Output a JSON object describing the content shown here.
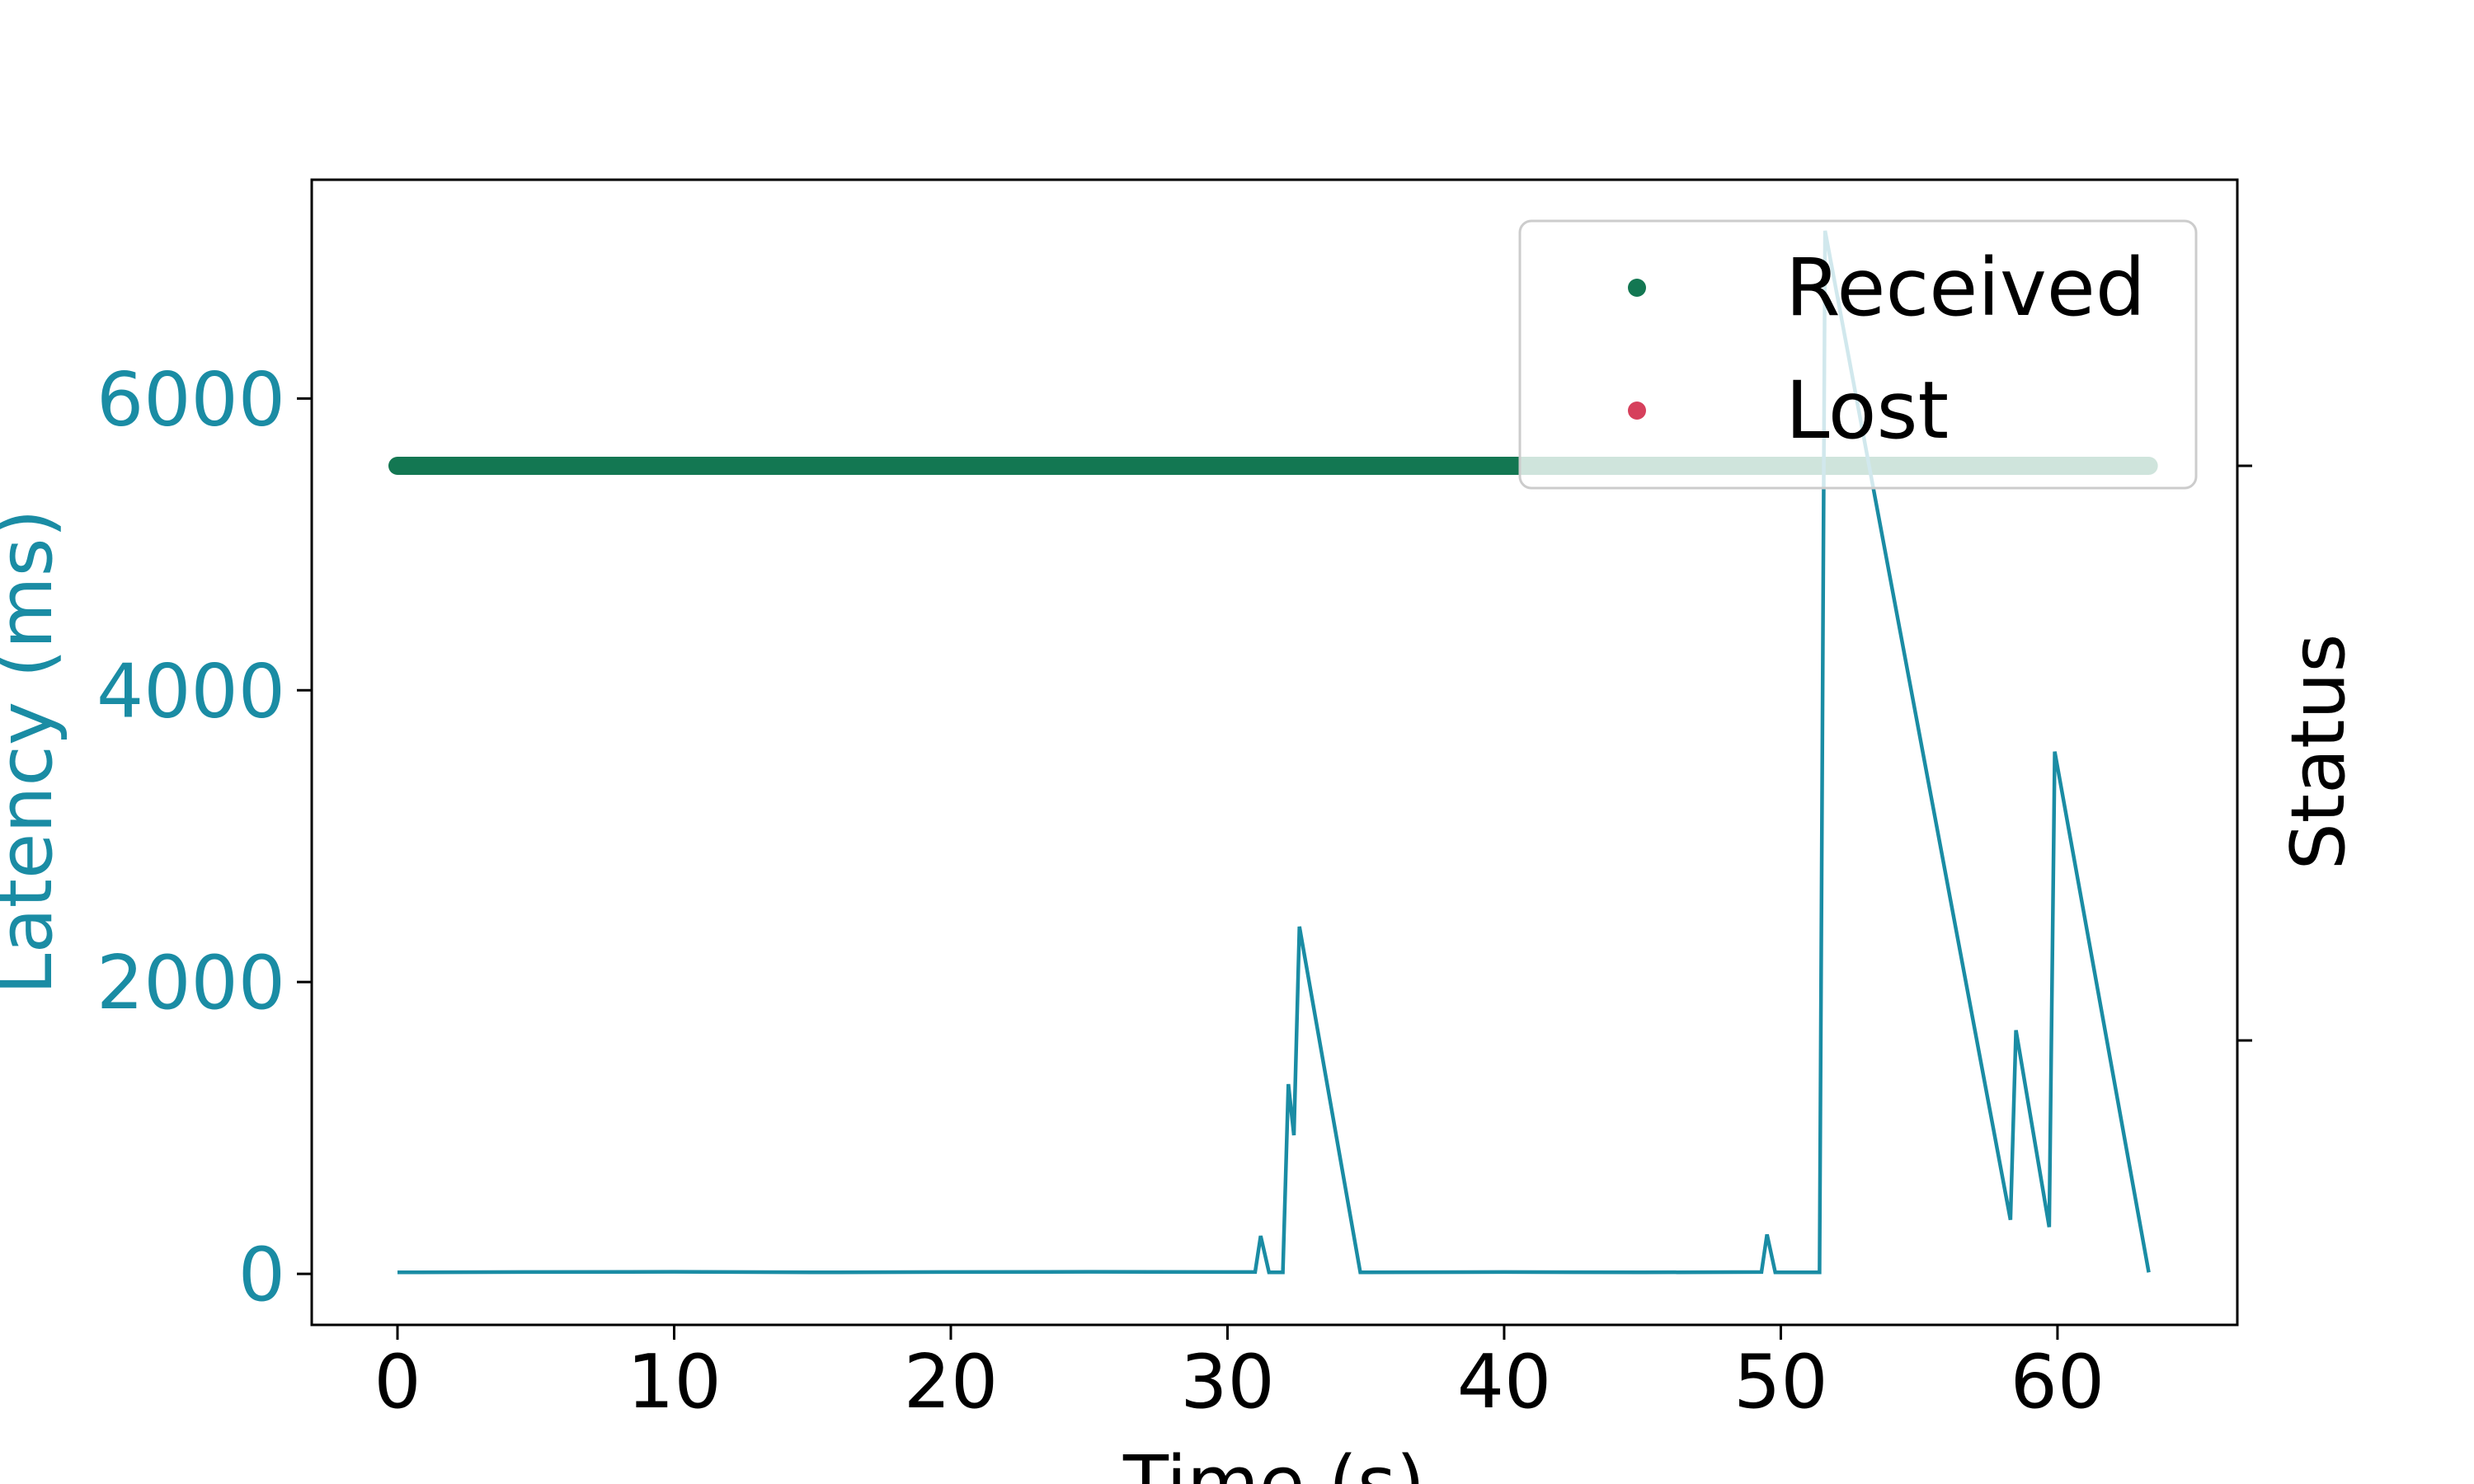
{
  "chart_data": {
    "type": "line",
    "title": "",
    "xlabel": "Time (s)",
    "ylabel": "Latency (ms)",
    "y2label": "Status",
    "xlim": [
      -3.1,
      66.5
    ],
    "ylim": [
      -350,
      7500
    ],
    "xticks": [
      0,
      10,
      20,
      30,
      40,
      50,
      60
    ],
    "yticks": [
      0,
      2000,
      4000,
      6000
    ],
    "x_tick_labels": [
      "0",
      "10",
      "20",
      "30",
      "40",
      "50",
      "60"
    ],
    "y_tick_labels": [
      "0",
      "2000",
      "4000",
      "6000"
    ],
    "grid": false,
    "legend": {
      "placement": "upper-right",
      "entries": [
        "Received",
        "Lost"
      ]
    },
    "colors": {
      "latency": "#1a8ca4",
      "received": "#137752",
      "lost": "#d6405c",
      "axis_left": "#1a8ca4"
    },
    "series": [
      {
        "name": "Latency",
        "x": [
          0,
          5,
          10,
          15,
          20,
          25,
          30,
          31.0,
          31.2,
          31.5,
          31.7,
          32.0,
          32.2,
          32.4,
          32.6,
          34.8,
          35.0,
          40,
          45,
          49.3,
          49.5,
          49.8,
          50,
          51.4,
          51.6,
          58.3,
          58.5,
          59.7,
          59.9,
          63.3
        ],
        "y": [
          10,
          12,
          14,
          10,
          12,
          14,
          12,
          12,
          260,
          10,
          10,
          10,
          1300,
          950,
          2380,
          10,
          10,
          12,
          10,
          12,
          270,
          10,
          10,
          10,
          7150,
          370,
          1670,
          320,
          3580,
          10
        ]
      },
      {
        "name": "Received",
        "x_start": 0,
        "x_end": 63.3,
        "status_level": "upper"
      },
      {
        "name": "Lost",
        "points": []
      }
    ]
  }
}
